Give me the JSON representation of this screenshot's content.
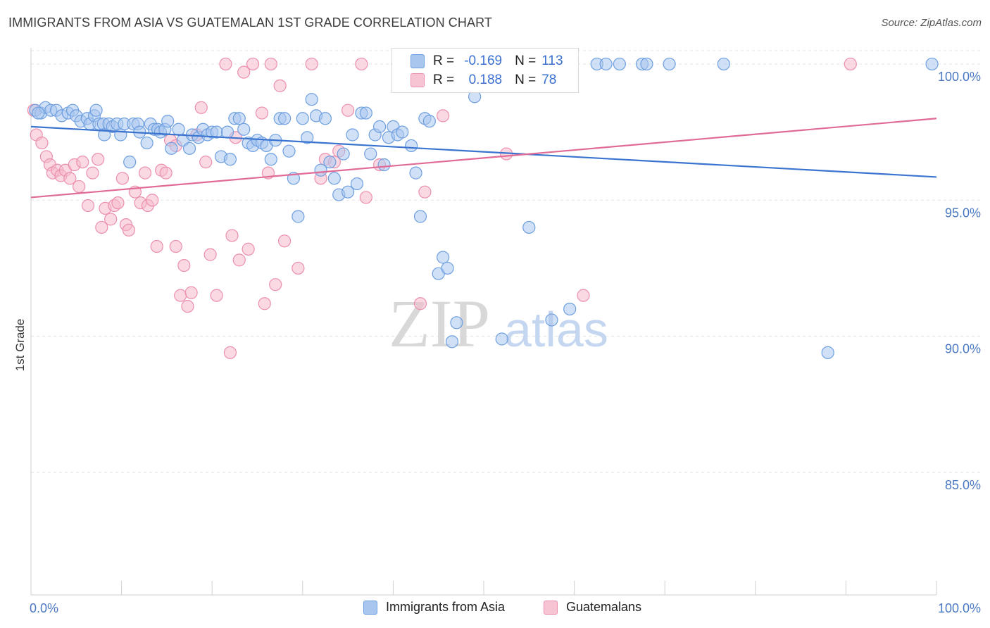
{
  "header": {
    "title": "IMMIGRANTS FROM ASIA VS GUATEMALAN 1ST GRADE CORRELATION CHART",
    "source": "Source: ZipAtlas.com"
  },
  "watermark": {
    "zip": "ZIP",
    "atlas": "atlas"
  },
  "legend": {
    "rows": [
      {
        "r_label": "R =",
        "r_value": "-0.169",
        "n_label": "N =",
        "n_value": "113"
      },
      {
        "r_label": "R =",
        "r_value": "0.188",
        "n_label": "N =",
        "n_value": "78"
      }
    ]
  },
  "bottom_legend": {
    "series1": "Immigrants from Asia",
    "series2": "Guatemalans"
  },
  "colors": {
    "blue_fill": "#a9c6ee",
    "blue_stroke": "#6e9fe0",
    "blue_line": "#3a74cf",
    "pink_fill": "#f6b9cc",
    "pink_stroke": "#ec8fae",
    "pink_line": "#e06b97",
    "axis_label": "#4a78c2"
  },
  "chart_data": {
    "type": "scatter",
    "title": "IMMIGRANTS FROM ASIA VS GUATEMALAN 1ST GRADE CORRELATION CHART",
    "xlabel": "",
    "ylabel": "1st Grade",
    "xlim": [
      0,
      100
    ],
    "ylim": [
      80.5,
      100.8
    ],
    "x_tick_labels": [
      "0.0%",
      "100.0%"
    ],
    "y_ticks": [
      85,
      90,
      95,
      100
    ],
    "y_tick_labels": [
      "85.0%",
      "90.0%",
      "95.0%",
      "100.0%"
    ],
    "grid": true,
    "series": [
      {
        "name": "Immigrants from Asia",
        "r": -0.169,
        "n": 113,
        "trend": {
          "x": [
            0,
            100
          ],
          "y": [
            97.7,
            95.85
          ]
        },
        "points": [
          [
            0.5,
            98.3
          ],
          [
            1.1,
            98.2
          ],
          [
            1.6,
            98.4
          ],
          [
            2.2,
            98.3
          ],
          [
            2.8,
            98.3
          ],
          [
            3.4,
            98.1
          ],
          [
            4.1,
            98.2
          ],
          [
            4.6,
            98.3
          ],
          [
            5.0,
            98.1
          ],
          [
            5.5,
            97.9
          ],
          [
            6.2,
            98.0
          ],
          [
            6.5,
            97.8
          ],
          [
            7.0,
            98.1
          ],
          [
            7.2,
            98.3
          ],
          [
            7.5,
            97.8
          ],
          [
            8.0,
            97.8
          ],
          [
            8.1,
            97.4
          ],
          [
            8.6,
            97.8
          ],
          [
            9.0,
            97.7
          ],
          [
            9.5,
            97.8
          ],
          [
            9.9,
            97.4
          ],
          [
            10.3,
            97.8
          ],
          [
            10.9,
            96.4
          ],
          [
            11.3,
            97.8
          ],
          [
            11.8,
            97.8
          ],
          [
            12.0,
            97.5
          ],
          [
            12.8,
            97.1
          ],
          [
            13.2,
            97.8
          ],
          [
            13.6,
            97.6
          ],
          [
            14.0,
            97.6
          ],
          [
            14.3,
            97.5
          ],
          [
            14.8,
            97.6
          ],
          [
            15.1,
            97.9
          ],
          [
            15.5,
            96.9
          ],
          [
            16.3,
            97.6
          ],
          [
            16.8,
            97.2
          ],
          [
            17.5,
            96.9
          ],
          [
            17.8,
            97.4
          ],
          [
            18.5,
            97.3
          ],
          [
            19.0,
            97.6
          ],
          [
            19.5,
            97.4
          ],
          [
            20.0,
            97.5
          ],
          [
            20.5,
            97.5
          ],
          [
            21.0,
            96.6
          ],
          [
            21.7,
            97.5
          ],
          [
            22.0,
            96.5
          ],
          [
            22.5,
            98.0
          ],
          [
            23.0,
            98.0
          ],
          [
            23.5,
            97.6
          ],
          [
            24.0,
            97.1
          ],
          [
            24.5,
            97.0
          ],
          [
            25.0,
            97.2
          ],
          [
            25.5,
            97.1
          ],
          [
            26.0,
            97.0
          ],
          [
            26.5,
            96.5
          ],
          [
            27.0,
            97.2
          ],
          [
            27.5,
            98.0
          ],
          [
            28.0,
            98.0
          ],
          [
            28.5,
            96.8
          ],
          [
            29.0,
            95.8
          ],
          [
            29.5,
            94.4
          ],
          [
            30.0,
            98.0
          ],
          [
            30.5,
            97.3
          ],
          [
            31.0,
            98.7
          ],
          [
            31.5,
            98.1
          ],
          [
            32.0,
            96.1
          ],
          [
            32.5,
            98.0
          ],
          [
            33.0,
            96.4
          ],
          [
            33.5,
            95.8
          ],
          [
            34.0,
            95.2
          ],
          [
            34.5,
            96.7
          ],
          [
            35.0,
            95.3
          ],
          [
            35.5,
            97.4
          ],
          [
            36.0,
            95.6
          ],
          [
            36.5,
            98.2
          ],
          [
            37.0,
            98.2
          ],
          [
            37.5,
            96.7
          ],
          [
            38.0,
            97.4
          ],
          [
            38.5,
            97.7
          ],
          [
            39.0,
            96.3
          ],
          [
            39.5,
            97.3
          ],
          [
            40.0,
            97.7
          ],
          [
            40.5,
            97.4
          ],
          [
            41.0,
            97.5
          ],
          [
            42.0,
            97.0
          ],
          [
            42.5,
            96.0
          ],
          [
            43.0,
            94.4
          ],
          [
            43.5,
            98.0
          ],
          [
            44.0,
            97.9
          ],
          [
            45.0,
            92.3
          ],
          [
            45.5,
            92.9
          ],
          [
            46.0,
            92.5
          ],
          [
            46.5,
            89.8
          ],
          [
            47.0,
            90.5
          ],
          [
            48.0,
            99.5
          ],
          [
            49.0,
            98.8
          ],
          [
            50.5,
            100.0
          ],
          [
            52.0,
            89.9
          ],
          [
            53.0,
            99.2
          ],
          [
            54.0,
            100.0
          ],
          [
            55.0,
            94.0
          ],
          [
            57.5,
            90.6
          ],
          [
            59.5,
            91.0
          ],
          [
            62.5,
            100.0
          ],
          [
            63.5,
            100.0
          ],
          [
            65.0,
            100.0
          ],
          [
            67.5,
            100.0
          ],
          [
            68.0,
            100.0
          ],
          [
            70.5,
            100.0
          ],
          [
            76.5,
            100.0
          ],
          [
            88.0,
            89.4
          ],
          [
            99.5,
            100.0
          ],
          [
            0.8,
            98.2
          ]
        ]
      },
      {
        "name": "Guatemalans",
        "r": 0.188,
        "n": 78,
        "trend": {
          "x": [
            0,
            100
          ],
          "y": [
            95.1,
            98.0
          ]
        },
        "points": [
          [
            0.3,
            98.3
          ],
          [
            0.6,
            97.4
          ],
          [
            1.2,
            97.1
          ],
          [
            1.7,
            96.6
          ],
          [
            2.1,
            96.3
          ],
          [
            2.4,
            96.0
          ],
          [
            2.9,
            96.1
          ],
          [
            3.3,
            95.9
          ],
          [
            3.8,
            96.1
          ],
          [
            4.3,
            95.8
          ],
          [
            4.8,
            96.3
          ],
          [
            5.3,
            95.5
          ],
          [
            5.7,
            96.4
          ],
          [
            6.3,
            94.8
          ],
          [
            6.8,
            96.0
          ],
          [
            7.4,
            96.5
          ],
          [
            7.8,
            94.0
          ],
          [
            8.2,
            94.7
          ],
          [
            8.8,
            94.3
          ],
          [
            9.2,
            94.8
          ],
          [
            9.6,
            94.9
          ],
          [
            10.1,
            95.8
          ],
          [
            10.5,
            94.1
          ],
          [
            10.8,
            93.9
          ],
          [
            11.5,
            95.3
          ],
          [
            12.1,
            94.9
          ],
          [
            12.6,
            96.0
          ],
          [
            12.9,
            94.8
          ],
          [
            13.4,
            95.0
          ],
          [
            13.9,
            93.3
          ],
          [
            14.4,
            96.1
          ],
          [
            14.9,
            96.0
          ],
          [
            15.4,
            97.2
          ],
          [
            16.0,
            93.3
          ],
          [
            16.5,
            91.5
          ],
          [
            16.9,
            92.6
          ],
          [
            17.3,
            91.1
          ],
          [
            17.7,
            91.6
          ],
          [
            18.3,
            97.4
          ],
          [
            18.8,
            98.4
          ],
          [
            19.3,
            96.4
          ],
          [
            19.8,
            93.0
          ],
          [
            20.5,
            91.5
          ],
          [
            21.5,
            100.0
          ],
          [
            22.2,
            93.7
          ],
          [
            22.6,
            97.3
          ],
          [
            23.0,
            92.8
          ],
          [
            23.5,
            99.7
          ],
          [
            24.0,
            93.2
          ],
          [
            24.5,
            100.0
          ],
          [
            25.5,
            98.2
          ],
          [
            25.8,
            91.2
          ],
          [
            26.2,
            96.0
          ],
          [
            26.5,
            100.0
          ],
          [
            27.0,
            91.9
          ],
          [
            27.5,
            99.2
          ],
          [
            28.0,
            93.5
          ],
          [
            29.5,
            92.5
          ],
          [
            31.0,
            100.0
          ],
          [
            32.0,
            95.8
          ],
          [
            32.5,
            96.5
          ],
          [
            33.5,
            96.4
          ],
          [
            34.0,
            96.8
          ],
          [
            35.0,
            98.3
          ],
          [
            36.5,
            100.0
          ],
          [
            37.0,
            95.1
          ],
          [
            38.5,
            96.3
          ],
          [
            40.5,
            100.0
          ],
          [
            43.0,
            91.2
          ],
          [
            43.5,
            95.3
          ],
          [
            45.5,
            98.1
          ],
          [
            52.5,
            96.7
          ],
          [
            57.5,
            100.0
          ],
          [
            61.0,
            91.5
          ],
          [
            90.5,
            100.0
          ],
          [
            22.0,
            89.4
          ],
          [
            16.0,
            97.0
          ],
          [
            48.0,
            100.0
          ]
        ]
      }
    ]
  }
}
